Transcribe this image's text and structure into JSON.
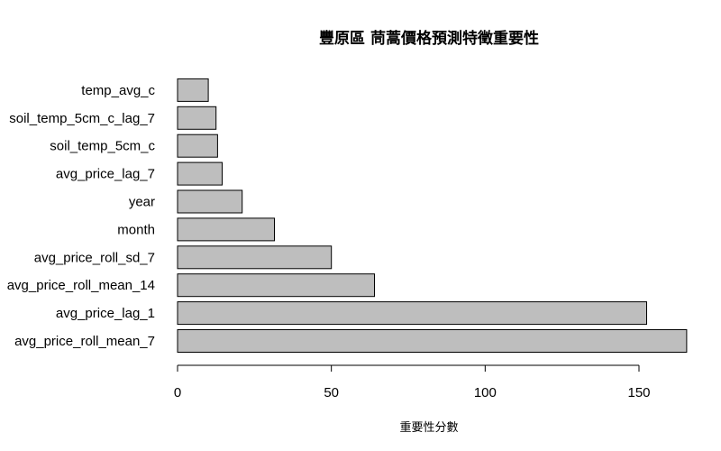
{
  "chart_data": {
    "type": "bar",
    "orientation": "horizontal",
    "title": "豐原區 茼蒿價格預測特徵重要性",
    "xlabel": "重要性分數",
    "ylabel": "",
    "categories": [
      "avg_price_roll_mean_7",
      "avg_price_lag_1",
      "avg_price_roll_mean_14",
      "avg_price_roll_sd_7",
      "month",
      "year",
      "avg_price_lag_7",
      "soil_temp_5cm_c",
      "soil_temp_5cm_c_lag_7",
      "temp_avg_c"
    ],
    "values": [
      165.5,
      152.5,
      64.0,
      50.0,
      31.5,
      21.0,
      14.5,
      13.0,
      12.5,
      10.0
    ],
    "xlim": [
      0,
      165.5
    ],
    "xticks": [
      0,
      50,
      100,
      150
    ],
    "grid": false,
    "bar_color": "#bebebe",
    "edge_color": "#000000"
  }
}
